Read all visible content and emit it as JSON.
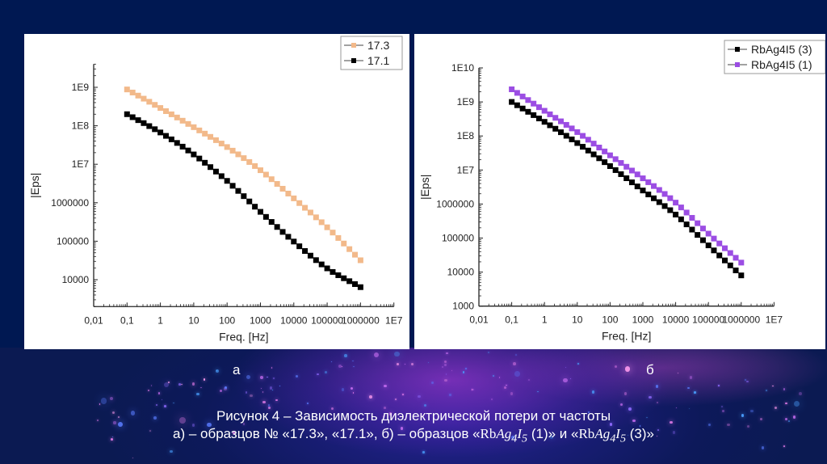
{
  "figure": {
    "sublabel_a": "а",
    "sublabel_b": "б",
    "caption_line1": "Рисунок 4 – Зависимость диэлектрической потери от частоты",
    "caption_line2_parts": {
      "prefix": "а) – образцов № «17.3»,  «17.1», б) – образцов «",
      "rb": "Rb",
      "ag": "Ag",
      "ag_sub": "4",
      "i": "I",
      "i_sub": "5",
      "mid": " (1)» и «",
      "suffix1": " (3)»"
    },
    "colors": {
      "background": "#001852",
      "panel": "#ffffff",
      "text_light": "#ffffff"
    }
  },
  "chart_data": [
    {
      "id": "a",
      "type": "scatter",
      "title": "",
      "xlabel": "Freq. [Hz]",
      "ylabel": "|Eps|",
      "xscale": "log",
      "yscale": "log",
      "xlim": [
        0.01,
        10000000
      ],
      "ylim": [
        2000,
        4000000000
      ],
      "x_ticks": [
        0.01,
        0.1,
        1,
        10,
        100,
        1000,
        10000,
        100000,
        1000000,
        10000000
      ],
      "x_tick_labels": [
        "0,01",
        "0,1",
        "1",
        "10",
        "100",
        "1000",
        "10000",
        "100000",
        "1000000",
        "1E7"
      ],
      "y_ticks": [
        10000,
        100000,
        1000000,
        10000000,
        100000000,
        1000000000
      ],
      "y_tick_labels": [
        "10000",
        "100000",
        "1000000",
        "1E7",
        "1E8",
        "1E9"
      ],
      "grid": false,
      "legend_position": "top-right",
      "points_per_decade": 6,
      "series": [
        {
          "name": "17.3",
          "color": "#f2b98a",
          "x": [
            0.1,
            1,
            10,
            100,
            1000,
            10000,
            100000,
            1000000
          ],
          "y": [
            880000000,
            290000000,
            92000000,
            28000000,
            7000000,
            1300000,
            230000,
            32000
          ]
        },
        {
          "name": "17.1",
          "color": "#000000",
          "x": [
            0.1,
            1,
            10,
            100,
            1000,
            10000,
            100000,
            1000000
          ],
          "y": [
            200000000,
            67000000,
            18000000,
            3700000,
            580000,
            98000,
            19700,
            6400
          ]
        }
      ]
    },
    {
      "id": "b",
      "type": "scatter",
      "title": "",
      "xlabel": "Freq. [Hz]",
      "ylabel": "|Eps|",
      "xscale": "log",
      "yscale": "log",
      "xlim": [
        0.01,
        10000000
      ],
      "ylim": [
        1000,
        10000000000
      ],
      "x_ticks": [
        0.01,
        0.1,
        1,
        10,
        100,
        1000,
        10000,
        100000,
        1000000,
        10000000
      ],
      "x_tick_labels": [
        "0,01",
        "0,1",
        "1",
        "10",
        "100",
        "1000",
        "10000",
        "100000",
        "1000000",
        "1E7"
      ],
      "y_ticks": [
        1000,
        10000,
        100000,
        1000000,
        10000000,
        100000000,
        1000000000,
        10000000000
      ],
      "y_tick_labels": [
        "1000",
        "10000",
        "100000",
        "1000000",
        "1E7",
        "1E8",
        "1E9",
        "1E10"
      ],
      "grid": false,
      "legend_position": "top-right",
      "points_per_decade": 6,
      "series": [
        {
          "name": "RbAg4I5 (3)",
          "color": "#000000",
          "x": [
            0.1,
            1,
            10,
            100,
            1000,
            10000,
            100000,
            1000000
          ],
          "y": [
            1000000000,
            260000000,
            62000000,
            13000000,
            2500000,
            490000,
            61000,
            8000
          ]
        },
        {
          "name": "RbAg4I5 (1)",
          "color": "#9b4de3",
          "x": [
            0.1,
            1,
            10,
            100,
            1000,
            10000,
            100000,
            1000000
          ],
          "y": [
            2350000000,
            550000000,
            130000000,
            27000000,
            5700000,
            1100000,
            135000,
            19000
          ]
        }
      ]
    }
  ]
}
